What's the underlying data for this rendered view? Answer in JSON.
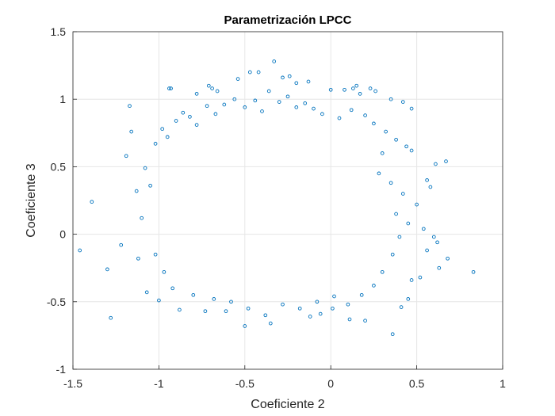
{
  "chart_data": {
    "type": "scatter",
    "title": "Parametrización LPCC",
    "xlabel": "Coeficiente 2",
    "ylabel": "Coeficiente 3",
    "xlim": [
      -1.5,
      1
    ],
    "ylim": [
      -1,
      1.5
    ],
    "xticks": [
      -1.5,
      -1,
      -0.5,
      0,
      0.5,
      1
    ],
    "yticks": [
      -1,
      -0.5,
      0,
      0.5,
      1,
      1.5
    ],
    "xtick_labels": [
      "-1.5",
      "-1",
      "-0.5",
      "0",
      "0.5",
      "1"
    ],
    "ytick_labels": [
      "-1",
      "-0.5",
      "0",
      "0.5",
      "1",
      "1.5"
    ],
    "grid": true,
    "marker": "circle-open",
    "colors": {
      "marker": "#0072BD",
      "grid": "#e6e6e6",
      "axis": "#262626",
      "background": "#ffffff"
    },
    "points": [
      [
        -1.46,
        -0.12
      ],
      [
        -1.39,
        0.24
      ],
      [
        -1.28,
        -0.62
      ],
      [
        -1.3,
        -0.26
      ],
      [
        -1.17,
        0.95
      ],
      [
        -1.16,
        0.76
      ],
      [
        -1.19,
        0.58
      ],
      [
        -0.94,
        1.08
      ],
      [
        -0.93,
        1.08
      ],
      [
        -0.78,
        1.04
      ],
      [
        -0.71,
        1.1
      ],
      [
        -0.69,
        1.08
      ],
      [
        -0.66,
        1.06
      ],
      [
        -0.54,
        1.15
      ],
      [
        -0.47,
        1.2
      ],
      [
        -0.42,
        1.2
      ],
      [
        -0.33,
        1.28
      ],
      [
        -0.28,
        1.16
      ],
      [
        -0.24,
        1.17
      ],
      [
        -0.2,
        1.12
      ],
      [
        -0.13,
        1.13
      ],
      [
        0.0,
        1.07
      ],
      [
        0.08,
        1.07
      ],
      [
        0.13,
        1.08
      ],
      [
        0.15,
        1.1
      ],
      [
        0.17,
        1.04
      ],
      [
        0.23,
        1.08
      ],
      [
        0.26,
        1.06
      ],
      [
        0.35,
        1.0
      ],
      [
        0.42,
        0.98
      ],
      [
        0.47,
        0.93
      ],
      [
        0.36,
        -0.74
      ],
      [
        0.2,
        -0.64
      ],
      [
        0.11,
        -0.63
      ],
      [
        0.01,
        -0.55
      ],
      [
        -0.12,
        -0.61
      ],
      [
        -0.06,
        -0.59
      ],
      [
        -0.35,
        -0.66
      ],
      [
        -0.5,
        -0.68
      ],
      [
        -0.61,
        -0.57
      ],
      [
        -0.73,
        -0.57
      ],
      [
        -0.88,
        -0.56
      ],
      [
        0.41,
        -0.54
      ],
      [
        0.45,
        -0.48
      ],
      [
        0.62,
        -0.06
      ],
      [
        0.6,
        -0.02
      ],
      [
        0.68,
        -0.18
      ],
      [
        0.63,
        -0.25
      ],
      [
        0.83,
        -0.28
      ],
      [
        0.67,
        0.54
      ],
      [
        0.61,
        0.52
      ],
      [
        0.58,
        0.35
      ],
      [
        0.56,
        0.4
      ],
      [
        0.47,
        0.62
      ],
      [
        0.44,
        0.65
      ],
      [
        0.5,
        0.22
      ],
      [
        0.54,
        0.04
      ],
      [
        0.56,
        -0.12
      ],
      [
        0.52,
        -0.32
      ],
      [
        0.47,
        -0.34
      ],
      [
        -1.1,
        0.12
      ],
      [
        -1.12,
        -0.18
      ],
      [
        -1.22,
        -0.08
      ],
      [
        -1.07,
        -0.43
      ],
      [
        -1.0,
        -0.49
      ],
      [
        -1.05,
        0.36
      ],
      [
        -1.08,
        0.49
      ],
      [
        -1.13,
        0.32
      ],
      [
        -1.02,
        0.67
      ],
      [
        -0.98,
        0.78
      ],
      [
        -0.95,
        0.72
      ],
      [
        -0.9,
        0.84
      ],
      [
        -0.86,
        0.9
      ],
      [
        -0.82,
        0.87
      ],
      [
        -0.78,
        0.81
      ],
      [
        -0.72,
        0.95
      ],
      [
        -0.67,
        0.89
      ],
      [
        -0.62,
        0.96
      ],
      [
        -0.56,
        1.0
      ],
      [
        -0.5,
        0.94
      ],
      [
        -0.44,
        0.99
      ],
      [
        -0.4,
        0.91
      ],
      [
        -0.36,
        1.06
      ],
      [
        -0.3,
        0.98
      ],
      [
        -0.25,
        1.02
      ],
      [
        -0.2,
        0.94
      ],
      [
        -0.15,
        0.97
      ],
      [
        -0.1,
        0.93
      ],
      [
        -0.05,
        0.89
      ],
      [
        0.05,
        0.86
      ],
      [
        0.12,
        0.92
      ],
      [
        0.2,
        0.88
      ],
      [
        0.25,
        0.82
      ],
      [
        0.32,
        0.76
      ],
      [
        0.38,
        0.7
      ],
      [
        0.3,
        0.6
      ],
      [
        0.28,
        0.45
      ],
      [
        0.35,
        0.38
      ],
      [
        0.42,
        0.3
      ],
      [
        0.38,
        0.15
      ],
      [
        0.45,
        0.08
      ],
      [
        0.4,
        -0.02
      ],
      [
        0.36,
        -0.15
      ],
      [
        0.3,
        -0.28
      ],
      [
        0.25,
        -0.38
      ],
      [
        0.18,
        -0.45
      ],
      [
        0.1,
        -0.52
      ],
      [
        0.02,
        -0.46
      ],
      [
        -0.08,
        -0.5
      ],
      [
        -0.18,
        -0.55
      ],
      [
        -0.28,
        -0.52
      ],
      [
        -0.38,
        -0.6
      ],
      [
        -0.48,
        -0.55
      ],
      [
        -0.58,
        -0.5
      ],
      [
        -0.68,
        -0.48
      ],
      [
        -0.8,
        -0.45
      ],
      [
        -0.92,
        -0.4
      ],
      [
        -0.97,
        -0.28
      ],
      [
        -1.02,
        -0.15
      ]
    ]
  }
}
